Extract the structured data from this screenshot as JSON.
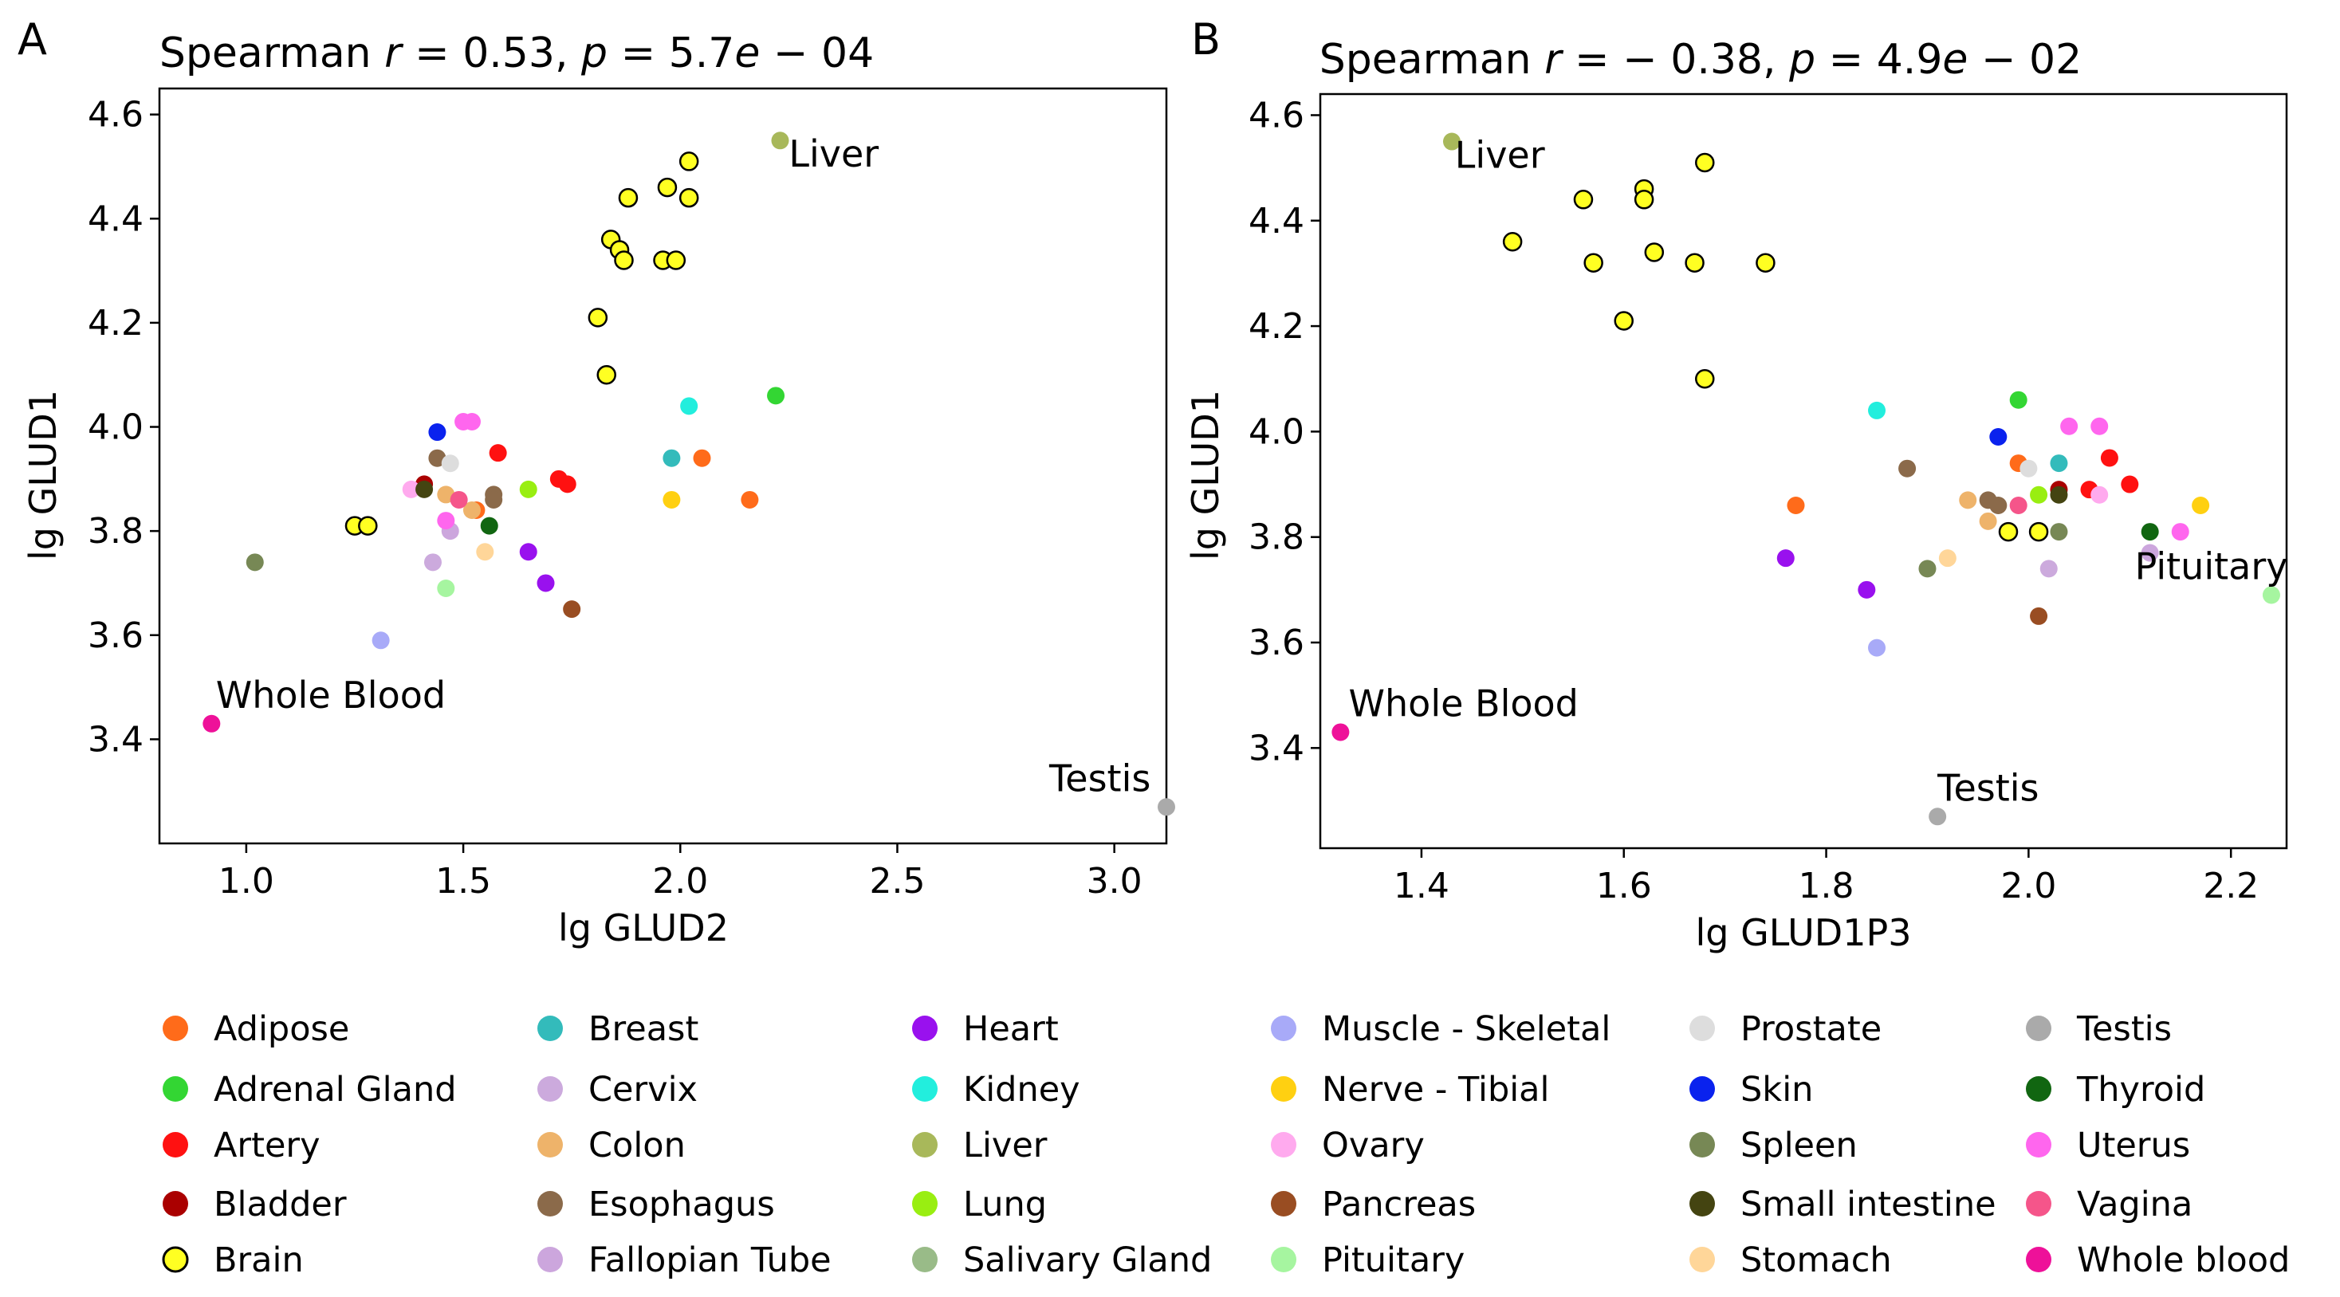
{
  "chart_data": [
    {
      "type": "scatter",
      "panel_letter": "A",
      "title": "Spearman r = 0.53, p = 5.7e − 04",
      "title_parts": {
        "pre": "Spearman ",
        "r_sym": "r",
        "r_val": " = 0.53, ",
        "p_sym": "p",
        "p_val": " = 5.7",
        "e_sym": "e",
        "p_exp": " − 04"
      },
      "xlabel": "lg GLUD2",
      "ylabel": "lg GLUD1",
      "xlim": [
        0.8,
        3.12
      ],
      "ylim": [
        3.2,
        4.65
      ],
      "xticks": [
        "1.0",
        "1.5",
        "2.0",
        "2.5",
        "3.0"
      ],
      "yticks": [
        "3.4",
        "3.6",
        "3.8",
        "4.0",
        "4.2",
        "4.4",
        "4.6"
      ],
      "annotations": [
        {
          "text": "Liver",
          "x": 2.23,
          "y": 4.55,
          "dx": 0.02,
          "dy": -0.05
        },
        {
          "text": "Whole Blood",
          "x": 0.92,
          "y": 3.43,
          "dx": 0.01,
          "dy": 0.03
        },
        {
          "text": "Testis",
          "x": 3.12,
          "y": 3.27,
          "dx": -0.27,
          "dy": 0.03
        }
      ],
      "points": [
        {
          "t": "Adipose",
          "x": 2.05,
          "y": 3.94
        },
        {
          "t": "Adipose",
          "x": 2.16,
          "y": 3.86
        },
        {
          "t": "Adipose",
          "x": 1.53,
          "y": 3.84
        },
        {
          "t": "Adrenal Gland",
          "x": 2.22,
          "y": 4.06
        },
        {
          "t": "Artery",
          "x": 1.58,
          "y": 3.95
        },
        {
          "t": "Artery",
          "x": 1.72,
          "y": 3.9
        },
        {
          "t": "Artery",
          "x": 1.74,
          "y": 3.89
        },
        {
          "t": "Bladder",
          "x": 1.41,
          "y": 3.89
        },
        {
          "t": "Brain",
          "x": 2.02,
          "y": 4.51
        },
        {
          "t": "Brain",
          "x": 1.97,
          "y": 4.46
        },
        {
          "t": "Brain",
          "x": 1.88,
          "y": 4.44
        },
        {
          "t": "Brain",
          "x": 2.02,
          "y": 4.44
        },
        {
          "t": "Brain",
          "x": 1.84,
          "y": 4.36
        },
        {
          "t": "Brain",
          "x": 1.86,
          "y": 4.34
        },
        {
          "t": "Brain",
          "x": 1.87,
          "y": 4.32
        },
        {
          "t": "Brain",
          "x": 1.96,
          "y": 4.32
        },
        {
          "t": "Brain",
          "x": 1.99,
          "y": 4.32
        },
        {
          "t": "Brain",
          "x": 1.81,
          "y": 4.21
        },
        {
          "t": "Brain",
          "x": 1.83,
          "y": 4.1
        },
        {
          "t": "Brain",
          "x": 1.25,
          "y": 3.81
        },
        {
          "t": "Brain",
          "x": 1.28,
          "y": 3.81
        },
        {
          "t": "Breast",
          "x": 1.98,
          "y": 3.94
        },
        {
          "t": "Cervix",
          "x": 1.43,
          "y": 3.74
        },
        {
          "t": "Colon",
          "x": 1.46,
          "y": 3.87
        },
        {
          "t": "Colon",
          "x": 1.52,
          "y": 3.84
        },
        {
          "t": "Esophagus",
          "x": 1.44,
          "y": 3.94
        },
        {
          "t": "Esophagus",
          "x": 1.57,
          "y": 3.87
        },
        {
          "t": "Esophagus",
          "x": 1.57,
          "y": 3.86
        },
        {
          "t": "Fallopian Tube",
          "x": 1.47,
          "y": 3.8
        },
        {
          "t": "Heart",
          "x": 1.65,
          "y": 3.76
        },
        {
          "t": "Heart",
          "x": 1.69,
          "y": 3.7
        },
        {
          "t": "Kidney",
          "x": 2.02,
          "y": 4.04
        },
        {
          "t": "Liver",
          "x": 2.23,
          "y": 4.55
        },
        {
          "t": "Lung",
          "x": 1.65,
          "y": 3.88
        },
        {
          "t": "Muscle - Skeletal",
          "x": 1.31,
          "y": 3.59
        },
        {
          "t": "Nerve - Tibial",
          "x": 1.98,
          "y": 3.86
        },
        {
          "t": "Ovary",
          "x": 1.38,
          "y": 3.88
        },
        {
          "t": "Pancreas",
          "x": 1.75,
          "y": 3.65
        },
        {
          "t": "Pituitary",
          "x": 1.46,
          "y": 3.69
        },
        {
          "t": "Prostate",
          "x": 1.47,
          "y": 3.93
        },
        {
          "t": "Skin",
          "x": 1.44,
          "y": 3.99
        },
        {
          "t": "Spleen",
          "x": 1.02,
          "y": 3.74
        },
        {
          "t": "Small intestine",
          "x": 1.41,
          "y": 3.88
        },
        {
          "t": "Stomach",
          "x": 1.55,
          "y": 3.76
        },
        {
          "t": "Testis",
          "x": 3.12,
          "y": 3.27
        },
        {
          "t": "Thyroid",
          "x": 1.56,
          "y": 3.81
        },
        {
          "t": "Uterus",
          "x": 1.5,
          "y": 4.01
        },
        {
          "t": "Uterus",
          "x": 1.52,
          "y": 4.01
        },
        {
          "t": "Uterus",
          "x": 1.46,
          "y": 3.82
        },
        {
          "t": "Vagina",
          "x": 1.49,
          "y": 3.86
        },
        {
          "t": "Whole blood",
          "x": 0.92,
          "y": 3.43
        }
      ]
    },
    {
      "type": "scatter",
      "panel_letter": "B",
      "title": "Spearman r = − 0.38, p = 4.9e − 02",
      "title_parts": {
        "pre": "Spearman ",
        "r_sym": "r",
        "r_val": " = − 0.38, ",
        "p_sym": "p",
        "p_val": " = 4.9",
        "e_sym": "e",
        "p_exp": " − 02"
      },
      "xlabel": "lg GLUD1P3",
      "ylabel": "lg GLUD1",
      "xlim": [
        1.3,
        2.255
      ],
      "ylim": [
        3.21,
        4.64
      ],
      "xticks": [
        "1.4",
        "1.6",
        "1.8",
        "2.0",
        "2.2"
      ],
      "yticks": [
        "3.4",
        "3.6",
        "3.8",
        "4.0",
        "4.2",
        "4.4",
        "4.6"
      ],
      "annotations": [
        {
          "text": "Liver",
          "x": 1.43,
          "y": 4.55,
          "dx": 0.003,
          "dy": -0.05
        },
        {
          "text": "Whole Blood",
          "x": 1.32,
          "y": 3.43,
          "dx": 0.008,
          "dy": 0.03
        },
        {
          "text": "Pituitary",
          "x": 2.24,
          "y": 3.69,
          "dx": -0.135,
          "dy": 0.03
        },
        {
          "text": "Testis",
          "x": 1.91,
          "y": 3.27,
          "dx": 0.0,
          "dy": 0.03
        }
      ],
      "points": [
        {
          "t": "Adipose",
          "x": 1.77,
          "y": 3.86
        },
        {
          "t": "Adipose",
          "x": 1.99,
          "y": 3.94
        },
        {
          "t": "Adrenal Gland",
          "x": 1.99,
          "y": 4.06
        },
        {
          "t": "Artery",
          "x": 2.08,
          "y": 3.95
        },
        {
          "t": "Artery",
          "x": 2.06,
          "y": 3.89
        },
        {
          "t": "Artery",
          "x": 2.1,
          "y": 3.9
        },
        {
          "t": "Bladder",
          "x": 2.03,
          "y": 3.89
        },
        {
          "t": "Brain",
          "x": 1.68,
          "y": 4.51
        },
        {
          "t": "Brain",
          "x": 1.62,
          "y": 4.46
        },
        {
          "t": "Brain",
          "x": 1.62,
          "y": 4.44
        },
        {
          "t": "Brain",
          "x": 1.56,
          "y": 4.44
        },
        {
          "t": "Brain",
          "x": 1.49,
          "y": 4.36
        },
        {
          "t": "Brain",
          "x": 1.63,
          "y": 4.34
        },
        {
          "t": "Brain",
          "x": 1.57,
          "y": 4.32
        },
        {
          "t": "Brain",
          "x": 1.67,
          "y": 4.32
        },
        {
          "t": "Brain",
          "x": 1.74,
          "y": 4.32
        },
        {
          "t": "Brain",
          "x": 1.6,
          "y": 4.21
        },
        {
          "t": "Brain",
          "x": 1.68,
          "y": 4.1
        },
        {
          "t": "Brain",
          "x": 1.98,
          "y": 3.81
        },
        {
          "t": "Brain",
          "x": 2.01,
          "y": 3.81
        },
        {
          "t": "Breast",
          "x": 2.03,
          "y": 3.94
        },
        {
          "t": "Cervix",
          "x": 2.02,
          "y": 3.74
        },
        {
          "t": "Colon",
          "x": 1.94,
          "y": 3.87
        },
        {
          "t": "Colon",
          "x": 1.96,
          "y": 3.83
        },
        {
          "t": "Esophagus",
          "x": 1.88,
          "y": 3.93
        },
        {
          "t": "Esophagus",
          "x": 1.96,
          "y": 3.87
        },
        {
          "t": "Esophagus",
          "x": 1.97,
          "y": 3.86
        },
        {
          "t": "Fallopian Tube",
          "x": 2.12,
          "y": 3.77
        },
        {
          "t": "Heart",
          "x": 1.76,
          "y": 3.76
        },
        {
          "t": "Heart",
          "x": 1.84,
          "y": 3.7
        },
        {
          "t": "Kidney",
          "x": 1.85,
          "y": 4.04
        },
        {
          "t": "Liver",
          "x": 1.43,
          "y": 4.55
        },
        {
          "t": "Lung",
          "x": 2.01,
          "y": 3.88
        },
        {
          "t": "Muscle - Skeletal",
          "x": 1.85,
          "y": 3.59
        },
        {
          "t": "Nerve - Tibial",
          "x": 2.17,
          "y": 3.86
        },
        {
          "t": "Ovary",
          "x": 2.07,
          "y": 3.88
        },
        {
          "t": "Pancreas",
          "x": 2.01,
          "y": 3.65
        },
        {
          "t": "Pituitary",
          "x": 2.24,
          "y": 3.69
        },
        {
          "t": "Prostate",
          "x": 2.0,
          "y": 3.93
        },
        {
          "t": "Skin",
          "x": 1.97,
          "y": 3.99
        },
        {
          "t": "Spleen",
          "x": 1.9,
          "y": 3.74
        },
        {
          "t": "Spleen",
          "x": 2.03,
          "y": 3.81
        },
        {
          "t": "Small intestine",
          "x": 2.03,
          "y": 3.88
        },
        {
          "t": "Stomach",
          "x": 1.92,
          "y": 3.76
        },
        {
          "t": "Testis",
          "x": 1.91,
          "y": 3.27
        },
        {
          "t": "Thyroid",
          "x": 2.12,
          "y": 3.81
        },
        {
          "t": "Uterus",
          "x": 2.04,
          "y": 4.01
        },
        {
          "t": "Uterus",
          "x": 2.07,
          "y": 4.01
        },
        {
          "t": "Uterus",
          "x": 2.15,
          "y": 3.81
        },
        {
          "t": "Vagina",
          "x": 1.99,
          "y": 3.86
        },
        {
          "t": "Whole blood",
          "x": 1.32,
          "y": 3.43
        }
      ]
    }
  ],
  "legend": {
    "placement": "bottom",
    "columns": [
      [
        {
          "label": "Adipose",
          "color": "#ff6b1a"
        },
        {
          "label": "Adrenal Gland",
          "color": "#33d633"
        },
        {
          "label": "Artery",
          "color": "#ff1111"
        },
        {
          "label": "Bladder",
          "color": "#aa0000"
        },
        {
          "label": "Brain",
          "color": "#ffff22",
          "edge": true
        }
      ],
      [
        {
          "label": "Breast",
          "color": "#33bbbb"
        },
        {
          "label": "Cervix",
          "color": "#ccaadd"
        },
        {
          "label": "Colon",
          "color": "#eeb36a"
        },
        {
          "label": "Esophagus",
          "color": "#8b6a4a"
        },
        {
          "label": "Fallopian Tube",
          "color": "#cca6dd"
        }
      ],
      [
        {
          "label": "Heart",
          "color": "#9911ee"
        },
        {
          "label": "Kidney",
          "color": "#22eedd"
        },
        {
          "label": "Liver",
          "color": "#a8b85a"
        },
        {
          "label": "Lung",
          "color": "#99ee11"
        },
        {
          "label": "Salivary Gland",
          "color": "#99bb88"
        }
      ],
      [
        {
          "label": "Muscle - Skeletal",
          "color": "#a8aaf8"
        },
        {
          "label": "Nerve - Tibial",
          "color": "#ffd011"
        },
        {
          "label": "Ovary",
          "color": "#ffaaee"
        },
        {
          "label": "Pancreas",
          "color": "#994d22"
        },
        {
          "label": "Pituitary",
          "color": "#a6f5a0"
        }
      ],
      [
        {
          "label": "Prostate",
          "color": "#dddddd"
        },
        {
          "label": "Skin",
          "color": "#0a22ee"
        },
        {
          "label": "Spleen",
          "color": "#778855"
        },
        {
          "label": "Small intestine",
          "color": "#444411"
        },
        {
          "label": "Stomach",
          "color": "#ffd699"
        }
      ],
      [
        {
          "label": "Testis",
          "color": "#aaaaaa"
        },
        {
          "label": "Thyroid",
          "color": "#116611"
        },
        {
          "label": "Uterus",
          "color": "#ff66ee"
        },
        {
          "label": "Vagina",
          "color": "#f5558a"
        },
        {
          "label": "Whole blood",
          "color": "#ee1199"
        }
      ]
    ]
  }
}
